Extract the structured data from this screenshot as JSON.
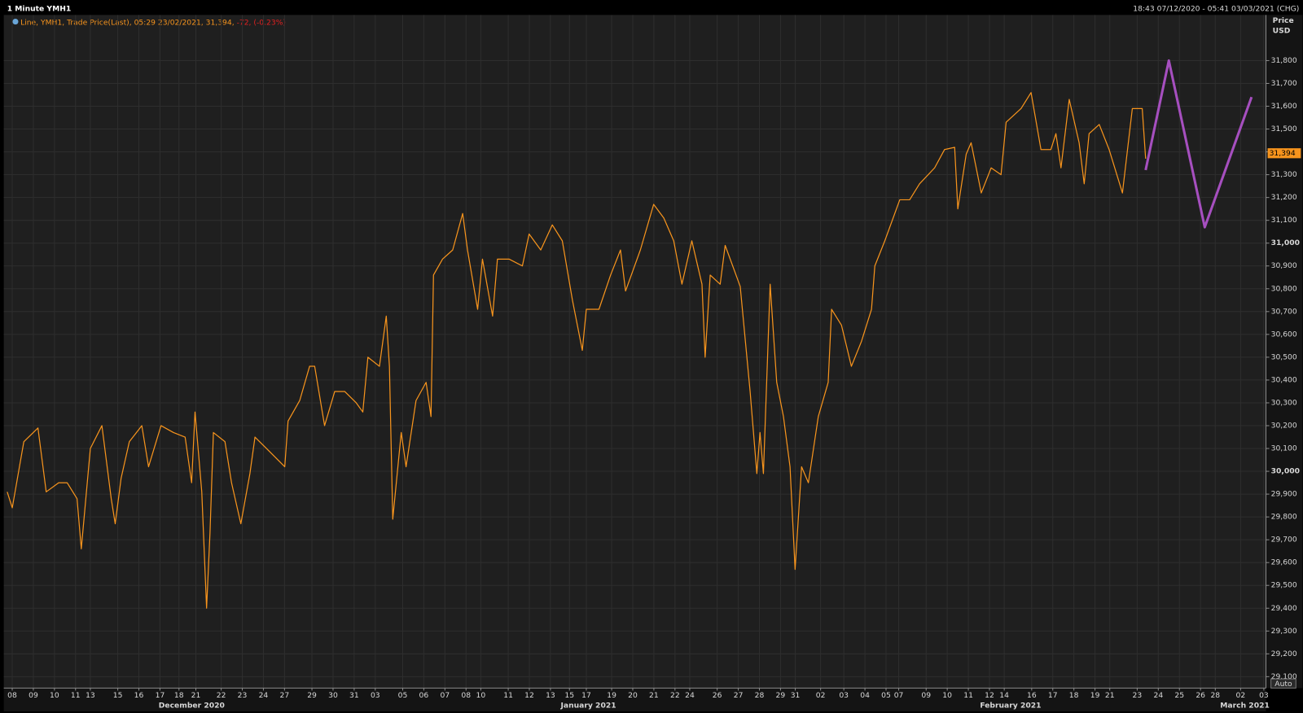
{
  "chart_data": {
    "type": "line",
    "title": "1 Minute YMH1",
    "subtitle": "18:43 07/12/2020 - 05:41 03/03/2021 (CHG)",
    "change": "-72, (-0.23%)",
    "y_label": "Price",
    "y_unit": "USD",
    "button": "Auto",
    "last_price": {
      "value": 31394,
      "label": "31,394"
    },
    "xlim": [
      -0.4,
      59.4
    ],
    "ylim": [
      29050,
      32000
    ],
    "grid": true,
    "yticks": [
      {
        "value": 29100,
        "label": "29,100"
      },
      {
        "value": 29200,
        "label": "29,200"
      },
      {
        "value": 29300,
        "label": "29,300"
      },
      {
        "value": 29400,
        "label": "29,400"
      },
      {
        "value": 29500,
        "label": "29,500"
      },
      {
        "value": 29600,
        "label": "29,600"
      },
      {
        "value": 29700,
        "label": "29,700"
      },
      {
        "value": 29800,
        "label": "29,800"
      },
      {
        "value": 29900,
        "label": "29,900"
      },
      {
        "value": 30000,
        "label": "30,000"
      },
      {
        "value": 30100,
        "label": "30,100"
      },
      {
        "value": 30200,
        "label": "30,200"
      },
      {
        "value": 30300,
        "label": "30,300"
      },
      {
        "value": 30400,
        "label": "30,400"
      },
      {
        "value": 30500,
        "label": "30,500"
      },
      {
        "value": 30600,
        "label": "30,600"
      },
      {
        "value": 30700,
        "label": "30,700"
      },
      {
        "value": 30800,
        "label": "30,800"
      },
      {
        "value": 30900,
        "label": "30,900"
      },
      {
        "value": 31000,
        "label": "31,000"
      },
      {
        "value": 31100,
        "label": "31,100"
      },
      {
        "value": 31200,
        "label": "31,200"
      },
      {
        "value": 31300,
        "label": "31,300"
      },
      {
        "value": 31400,
        "label": "31,400"
      },
      {
        "value": 31500,
        "label": "31,500"
      },
      {
        "value": 31600,
        "label": "31,600"
      },
      {
        "value": 31700,
        "label": "31,700"
      },
      {
        "value": 31800,
        "label": "31,800"
      }
    ],
    "xticks": [
      {
        "value": 0,
        "label": "08"
      },
      {
        "value": 1.0,
        "label": "09"
      },
      {
        "value": 2.0,
        "label": "10"
      },
      {
        "value": 3.0,
        "label": "11"
      },
      {
        "value": 3.7,
        "label": "13"
      },
      {
        "value": 5.0,
        "label": "15"
      },
      {
        "value": 6.0,
        "label": "16"
      },
      {
        "value": 7.0,
        "label": "17"
      },
      {
        "value": 7.9,
        "label": "18"
      },
      {
        "value": 8.7,
        "label": "21"
      },
      {
        "value": 9.9,
        "label": "22"
      },
      {
        "value": 10.9,
        "label": "23"
      },
      {
        "value": 11.9,
        "label": "24"
      },
      {
        "value": 12.9,
        "label": "27"
      },
      {
        "value": 14.2,
        "label": "29"
      },
      {
        "value": 15.2,
        "label": "30"
      },
      {
        "value": 16.2,
        "label": "31"
      },
      {
        "value": 17.2,
        "label": "03"
      },
      {
        "value": 18.5,
        "label": "05"
      },
      {
        "value": 19.5,
        "label": "06"
      },
      {
        "value": 20.5,
        "label": "07"
      },
      {
        "value": 21.5,
        "label": "08"
      },
      {
        "value": 22.2,
        "label": "10"
      },
      {
        "value": 23.5,
        "label": "11"
      },
      {
        "value": 24.5,
        "label": "12"
      },
      {
        "value": 25.5,
        "label": "13"
      },
      {
        "value": 26.4,
        "label": "15"
      },
      {
        "value": 27.2,
        "label": "17"
      },
      {
        "value": 28.4,
        "label": "19"
      },
      {
        "value": 29.4,
        "label": "20"
      },
      {
        "value": 30.4,
        "label": "21"
      },
      {
        "value": 31.4,
        "label": "22"
      },
      {
        "value": 32.1,
        "label": "24"
      },
      {
        "value": 33.4,
        "label": "26"
      },
      {
        "value": 34.4,
        "label": "27"
      },
      {
        "value": 35.4,
        "label": "28"
      },
      {
        "value": 36.4,
        "label": "29"
      },
      {
        "value": 37.1,
        "label": "31"
      },
      {
        "value": 38.3,
        "label": "02"
      },
      {
        "value": 39.4,
        "label": "03"
      },
      {
        "value": 40.4,
        "label": "04"
      },
      {
        "value": 41.4,
        "label": "05"
      },
      {
        "value": 42.0,
        "label": "07"
      },
      {
        "value": 43.3,
        "label": "09"
      },
      {
        "value": 44.3,
        "label": "10"
      },
      {
        "value": 45.3,
        "label": "11"
      },
      {
        "value": 46.3,
        "label": "12"
      },
      {
        "value": 47.0,
        "label": "14"
      },
      {
        "value": 48.3,
        "label": "16"
      },
      {
        "value": 49.3,
        "label": "17"
      },
      {
        "value": 50.3,
        "label": "18"
      },
      {
        "value": 51.3,
        "label": "19"
      },
      {
        "value": 52.0,
        "label": "21"
      },
      {
        "value": 53.3,
        "label": "23"
      },
      {
        "value": 54.3,
        "label": "24"
      },
      {
        "value": 55.3,
        "label": "25"
      },
      {
        "value": 56.3,
        "label": "26"
      },
      {
        "value": 57.0,
        "label": "28"
      },
      {
        "value": 58.2,
        "label": "02"
      },
      {
        "value": 59.3,
        "label": "03"
      }
    ],
    "months": [
      {
        "value": 8.5,
        "label": "December 2020"
      },
      {
        "value": 27.3,
        "label": "January 2021"
      },
      {
        "value": 47.3,
        "label": "February 2021"
      },
      {
        "value": 58.4,
        "label": "March 2021"
      }
    ],
    "series": [
      {
        "name": "Line, YMH1, Trade Price(Last), 05:29 23/02/2021, 31,394,",
        "color": "#f7941d",
        "x": [
          -0.24,
          0,
          0.55,
          1.22,
          1.61,
          2.2,
          2.6,
          3.07,
          3.27,
          3.7,
          4.25,
          4.69,
          4.88,
          5.16,
          5.55,
          6.14,
          6.46,
          7.05,
          7.64,
          8.19,
          8.5,
          8.66,
          8.98,
          9.21,
          9.37,
          9.53,
          10.08,
          10.39,
          10.83,
          11.26,
          11.5,
          12.05,
          12.91,
          13.07,
          13.62,
          14.09,
          14.33,
          14.8,
          15.28,
          15.75,
          16.3,
          16.61,
          16.85,
          17.4,
          17.72,
          17.87,
          18.03,
          18.43,
          18.66,
          19.13,
          19.61,
          19.84,
          19.96,
          20.39,
          20.87,
          21.34,
          21.57,
          22.05,
          22.28,
          22.76,
          22.99,
          23.54,
          24.17,
          24.49,
          25.04,
          25.59,
          26.06,
          26.54,
          27.01,
          27.2,
          27.8,
          28.35,
          28.82,
          29.06,
          29.76,
          30.39,
          30.87,
          31.34,
          31.73,
          32.2,
          32.68,
          32.83,
          33.07,
          33.54,
          33.78,
          34.49,
          34.96,
          35.28,
          35.43,
          35.59,
          35.91,
          36.22,
          36.54,
          36.85,
          37.09,
          37.4,
          37.72,
          38.19,
          38.66,
          38.82,
          39.29,
          39.76,
          40.24,
          40.71,
          40.87,
          41.34,
          42.05,
          42.52,
          42.99,
          43.7,
          44.17,
          44.65,
          44.8,
          45.2,
          45.43,
          45.91,
          46.38,
          46.85,
          47.09,
          47.8,
          48.27,
          48.74,
          49.21,
          49.45,
          49.69,
          50.08,
          50.55,
          50.79,
          51.02,
          51.5,
          51.97,
          52.6,
          53.07,
          53.54,
          53.7
        ],
        "values": [
          29910,
          29840,
          30130,
          30190,
          29910,
          29950,
          29950,
          29880,
          29660,
          30100,
          30200,
          29880,
          29770,
          29970,
          30130,
          30200,
          30020,
          30200,
          30170,
          30150,
          29950,
          30260,
          29910,
          29400,
          29730,
          30170,
          30130,
          29950,
          29770,
          29990,
          30150,
          30100,
          30020,
          30220,
          30310,
          30460,
          30460,
          30200,
          30350,
          30350,
          30300,
          30260,
          30500,
          30460,
          30680,
          30460,
          29790,
          30170,
          30020,
          30310,
          30390,
          30240,
          30860,
          30930,
          30970,
          31130,
          30970,
          30710,
          30930,
          30680,
          30930,
          30930,
          30900,
          31040,
          30970,
          31080,
          31010,
          30750,
          30530,
          30710,
          30710,
          30860,
          30970,
          30790,
          30970,
          31170,
          31110,
          31010,
          30820,
          31010,
          30820,
          30500,
          30860,
          30820,
          30990,
          30810,
          30350,
          29990,
          30170,
          29990,
          30820,
          30390,
          30240,
          30020,
          29570,
          30020,
          29950,
          30240,
          30390,
          30710,
          30640,
          30460,
          30570,
          30710,
          30900,
          31010,
          31190,
          31190,
          31260,
          31330,
          31410,
          31420,
          31150,
          31390,
          31440,
          31220,
          31330,
          31300,
          31530,
          31590,
          31660,
          31410,
          31410,
          31480,
          31330,
          31630,
          31440,
          31260,
          31480,
          31520,
          31410,
          31220,
          31590,
          31590,
          31370
        ]
      },
      {
        "color": "#a64fbf",
        "x": [
          53.7,
          54.8,
          56.5,
          58.72
        ],
        "values": [
          31320,
          31800,
          31070,
          31640
        ]
      }
    ]
  }
}
